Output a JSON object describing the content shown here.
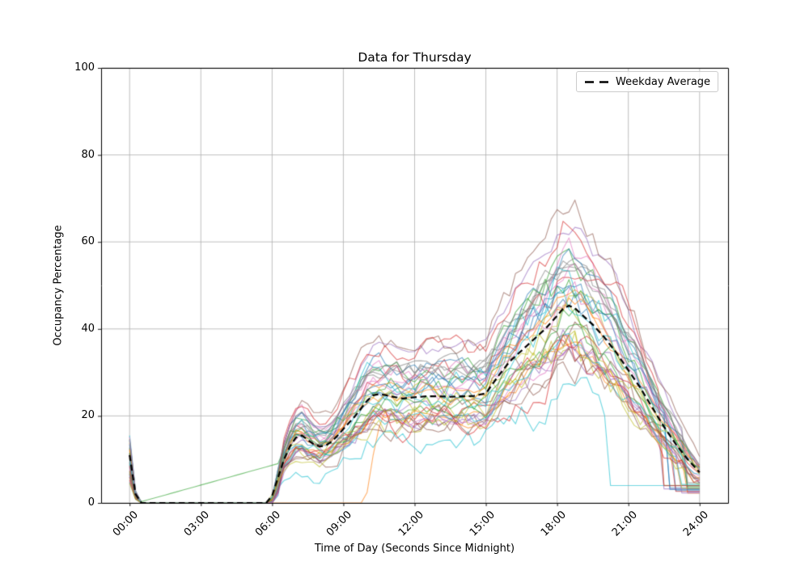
{
  "chart_data": {
    "type": "line",
    "title": "Data for Thursday",
    "xlabel": "Time of Day (Seconds Since Midnight)",
    "ylabel": "Occupancy Percentage",
    "x_tick_labels": [
      "00:00",
      "03:00",
      "06:00",
      "09:00",
      "12:00",
      "15:00",
      "18:00",
      "21:00",
      "24:00"
    ],
    "x_tick_hours": [
      0,
      3,
      6,
      9,
      12,
      15,
      18,
      21,
      24
    ],
    "y_tick_labels": [
      "0",
      "20",
      "40",
      "60",
      "80",
      "100"
    ],
    "y_ticks": [
      0,
      20,
      40,
      60,
      80,
      100
    ],
    "xlim_hours": [
      -1.2,
      25.2
    ],
    "ylim": [
      0,
      100
    ],
    "grid": true,
    "grid_color": "#b0b0b0",
    "spine_color": "#000000",
    "background": "#ffffff",
    "legend": {
      "label": "Weekday Average",
      "style": "dashed",
      "color": "#000000",
      "position": "upper-right"
    },
    "average_series": {
      "name": "Weekday Average",
      "style": "dashed",
      "color": "#000000",
      "points": [
        [
          0,
          11
        ],
        [
          0.25,
          2
        ],
        [
          0.45,
          0
        ],
        [
          5.9,
          0
        ],
        [
          6.2,
          5
        ],
        [
          6.5,
          10
        ],
        [
          6.75,
          13
        ],
        [
          7,
          15
        ],
        [
          7.25,
          15.5
        ],
        [
          7.5,
          14.5
        ],
        [
          7.75,
          13.5
        ],
        [
          8,
          13
        ],
        [
          8.3,
          13.2
        ],
        [
          8.6,
          14.5
        ],
        [
          9,
          17
        ],
        [
          9.5,
          20
        ],
        [
          10,
          23.5
        ],
        [
          10.3,
          25
        ],
        [
          10.6,
          25
        ],
        [
          11,
          24.5
        ],
        [
          11.5,
          24
        ],
        [
          12,
          24.3
        ],
        [
          12.5,
          24.5
        ],
        [
          13,
          24.5
        ],
        [
          13.5,
          24.4
        ],
        [
          14,
          24.5
        ],
        [
          14.5,
          24.6
        ],
        [
          15,
          25.2
        ],
        [
          15.5,
          29
        ],
        [
          16,
          32.5
        ],
        [
          16.5,
          35
        ],
        [
          17,
          37.5
        ],
        [
          17.5,
          40
        ],
        [
          18,
          43
        ],
        [
          18.3,
          45
        ],
        [
          18.6,
          45.5
        ],
        [
          19,
          43.5
        ],
        [
          19.5,
          41
        ],
        [
          20,
          38
        ],
        [
          20.5,
          34.5
        ],
        [
          21,
          30.5
        ],
        [
          21.5,
          26.5
        ],
        [
          22,
          22
        ],
        [
          22.5,
          17.5
        ],
        [
          23,
          13.5
        ],
        [
          23.5,
          10
        ],
        [
          24,
          7
        ]
      ]
    },
    "ensemble": {
      "description": "About 40 individual day traces: near 0 overnight (00:30-06:00), midnight spike to 4-15, morning rise after 06:00 to a 10-15 bump, plateau 18-35 from 10:00-15:00, evening peak 30-73 around 18:00-19:00, decline to 2-9 by 24:00; several flat tails near 3 after 22:30.",
      "n_series": 40,
      "alpha": 0.6,
      "line_width": 1.15,
      "palette": [
        "#1f77b4",
        "#ff7f0e",
        "#2ca02c",
        "#d62728",
        "#9467bd",
        "#8c564b",
        "#e377c2",
        "#7f7f7f",
        "#bcbd22",
        "#17becf"
      ],
      "value_spread_factor": [
        0.72,
        1.32
      ],
      "noise_amplitude": [
        1.5,
        4
      ],
      "sample_step_hours": 0.25,
      "seed": 42,
      "max_individual_peak": 73,
      "special": {
        "cyan_spike_index": 9,
        "cyan_spike_value": 15.5,
        "green_diagonal_index": 2,
        "green_diagonal_start_hour": 0.3,
        "green_diagonal_slope": 1.52,
        "orange_late_start_index": 11,
        "orange_late_start_hour": 9.8,
        "high_outlier_indices": [
          4,
          15,
          23
        ],
        "low_outlier_index": 19
      }
    }
  }
}
